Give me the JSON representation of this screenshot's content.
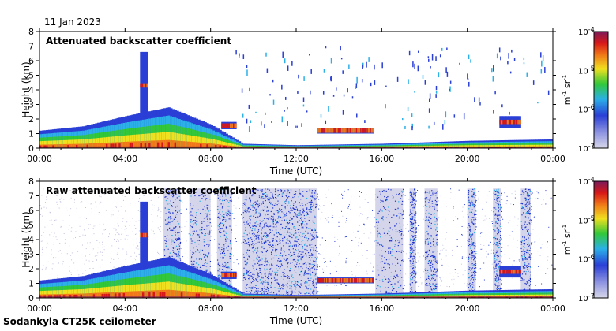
{
  "header": {
    "date": "11 Jan 2023"
  },
  "footer": {
    "instrument": "Sodankyla CT25K ceilometer"
  },
  "colorbar": {
    "unit_main": "m",
    "unit_sup1": "-1",
    "unit_mid": " sr",
    "unit_sup2": "-1",
    "ticks": [
      {
        "base": "10",
        "exp": "-4",
        "value": 0.0001
      },
      {
        "base": "10",
        "exp": "-5",
        "value": 1e-05
      },
      {
        "base": "10",
        "exp": "-6",
        "value": 1e-06
      },
      {
        "base": "10",
        "exp": "-7",
        "value": 1e-07
      }
    ],
    "colors": [
      "#d8d8ea",
      "#2a3fd6",
      "#2bb0e8",
      "#32c83a",
      "#f0e020",
      "#f07818",
      "#d81818",
      "#7a1a5a"
    ]
  },
  "chart_data": [
    {
      "type": "heatmap",
      "title": "Attenuated backscatter coefficient",
      "xlabel": "Time (UTC)",
      "ylabel": "Height (km)",
      "xlim": [
        0,
        24
      ],
      "ylim": [
        0,
        8
      ],
      "xticks": [
        "00:00",
        "04:00",
        "08:00",
        "12:00",
        "16:00",
        "20:00",
        "00:00"
      ],
      "yticks": [
        "0",
        "1",
        "2",
        "3",
        "4",
        "5",
        "6",
        "7",
        "8"
      ],
      "colorscale_range": [
        1e-07,
        0.0001
      ],
      "features": {
        "aerosol_layer_top_km": [
          [
            0,
            1.2
          ],
          [
            2,
            1.5
          ],
          [
            4,
            2.2
          ],
          [
            6,
            2.8
          ],
          [
            8,
            1.6
          ],
          [
            9.5,
            0.3
          ],
          [
            12,
            0.2
          ],
          [
            16,
            0.3
          ],
          [
            18,
            0.4
          ],
          [
            20,
            0.5
          ],
          [
            24,
            0.6
          ]
        ],
        "cloud_layers": [
          {
            "start_h": 4.7,
            "end_h": 5.0,
            "base_km": 2.0,
            "top_km": 6.6
          },
          {
            "start_h": 8.5,
            "end_h": 9.2,
            "base_km": 1.3,
            "top_km": 1.8
          },
          {
            "start_h": 13.0,
            "end_h": 15.6,
            "base_km": 1.0,
            "top_km": 1.4
          },
          {
            "start_h": 21.5,
            "end_h": 22.5,
            "base_km": 1.4,
            "top_km": 2.2
          }
        ]
      }
    },
    {
      "type": "heatmap",
      "title": "Raw attenuated backscatter coefficient",
      "xlabel": "Time (UTC)",
      "ylabel": "Height (km)",
      "xlim": [
        0,
        24
      ],
      "ylim": [
        0,
        8
      ],
      "xticks": [
        "00:00",
        "04:00",
        "08:00",
        "12:00",
        "16:00",
        "20:00",
        "00:00"
      ],
      "yticks": [
        "0",
        "1",
        "2",
        "3",
        "4",
        "5",
        "6",
        "7",
        "8"
      ],
      "colorscale_range": [
        1e-07,
        0.0001
      ],
      "features": {
        "noise_blocks_h": [
          [
            5.8,
            6.6
          ],
          [
            7.0,
            8.0
          ],
          [
            8.3,
            9.0
          ],
          [
            9.5,
            13.0
          ],
          [
            15.7,
            17.0
          ],
          [
            17.3,
            17.6
          ],
          [
            18.0,
            18.6
          ],
          [
            20.0,
            20.4
          ],
          [
            21.2,
            21.6
          ],
          [
            22.5,
            23.0
          ]
        ],
        "noise_top_km": 7.5
      }
    }
  ]
}
